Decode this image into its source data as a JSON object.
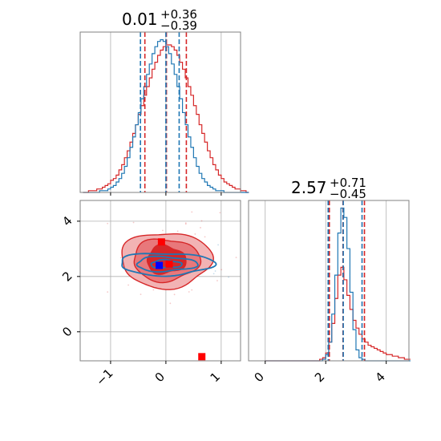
{
  "chart_data": {
    "type": "corner",
    "colors": {
      "series_a": "#d62728",
      "series_b": "#1f77b4",
      "marker_a": "#ff0000",
      "marker_b": "#0000ff",
      "grid": "#b0b0b0",
      "axes": "#808080"
    },
    "titles": {
      "param1": {
        "median": "0.01",
        "plus": "+0.36",
        "minus": "−0.39"
      },
      "param2": {
        "median": "2.57",
        "plus": "+0.71",
        "minus": "−0.45"
      }
    },
    "xlim_param1": [
      -1.55,
      1.35
    ],
    "xlim_param2": [
      -0.55,
      4.75
    ],
    "ylim_param2": [
      -1.05,
      4.75
    ],
    "ticks_param1": [
      -1,
      0,
      1
    ],
    "ticks_param1_labels": [
      "−1",
      "0",
      "1"
    ],
    "ticks_param2": [
      0,
      2,
      4
    ],
    "ticks_param2_labels": [
      "0",
      "2",
      "4"
    ],
    "grid": true,
    "hist_param1": {
      "edges_start": -1.5,
      "bin_width": 0.05,
      "series": [
        {
          "color": "#d62728",
          "values": [
            0,
            0,
            1,
            1,
            1,
            2,
            2,
            3,
            4,
            5,
            7,
            8,
            10,
            13,
            16,
            20,
            24,
            29,
            34,
            39,
            45,
            50,
            56,
            61,
            66,
            71,
            75,
            79,
            82,
            84,
            85,
            85,
            84,
            82,
            79,
            75,
            71,
            66,
            61,
            56,
            50,
            45,
            39,
            34,
            29,
            24,
            20,
            16,
            13,
            10,
            8,
            6,
            5,
            4,
            3,
            2,
            2,
            1,
            1,
            0
          ]
        },
        {
          "color": "#1f77b4",
          "values": [
            0,
            0,
            0,
            0,
            0,
            0,
            1,
            1,
            1,
            2,
            3,
            4,
            6,
            8,
            11,
            15,
            20,
            26,
            32,
            39,
            46,
            54,
            61,
            68,
            74,
            80,
            84,
            87,
            88,
            87,
            84,
            80,
            74,
            68,
            61,
            54,
            46,
            39,
            32,
            26,
            20,
            15,
            11,
            8,
            6,
            4,
            3,
            2,
            1,
            1,
            1,
            0,
            0,
            0,
            0,
            0,
            0,
            0,
            0,
            0
          ]
        }
      ],
      "quantiles": [
        {
          "color": "#d62728",
          "values": [
            -0.38,
            0.01,
            0.37
          ]
        },
        {
          "color": "#1f77b4",
          "values": [
            -0.46,
            0.0,
            0.24
          ]
        }
      ]
    },
    "hist_param2": {
      "edges_start": 0.0,
      "bin_width": 0.1,
      "series": [
        {
          "color": "#d62728",
          "values": [
            0,
            0,
            0,
            0,
            0,
            0,
            0,
            0,
            0,
            0,
            0,
            0,
            0,
            0,
            0,
            0,
            0,
            0,
            1,
            2,
            5,
            12,
            24,
            40,
            55,
            60,
            52,
            42,
            33,
            26,
            21,
            17,
            14,
            12,
            10,
            9,
            8,
            7,
            6,
            5,
            4,
            4,
            3,
            3,
            2,
            2,
            1,
            1
          ]
        },
        {
          "color": "#1f77b4",
          "values": [
            0,
            0,
            0,
            0,
            0,
            0,
            0,
            0,
            0,
            0,
            0,
            0,
            0,
            0,
            0,
            0,
            0,
            0,
            0,
            1,
            4,
            12,
            30,
            55,
            82,
            98,
            92,
            72,
            44,
            20,
            7,
            2,
            1,
            0,
            0,
            0,
            0,
            0,
            0,
            0,
            0,
            0,
            0,
            0,
            0,
            0,
            0,
            0
          ]
        }
      ],
      "quantiles": [
        {
          "color": "#d62728",
          "values": [
            2.12,
            2.57,
            3.28
          ]
        },
        {
          "color": "#1f77b4",
          "values": [
            2.08,
            2.58,
            3.2
          ]
        }
      ]
    },
    "scatter": {
      "series_a": {
        "center": [
          0.0,
          2.6
        ],
        "spread": [
          0.4,
          0.55
        ],
        "count": 90,
        "color": "#d62728"
      },
      "series_b": {
        "center": [
          0.0,
          2.5
        ],
        "spread": [
          0.35,
          0.25
        ],
        "count": 40,
        "color": "#1f77b4"
      }
    },
    "contours": {
      "series_a": {
        "color": "#d62728",
        "fills": [
          "#f2b3b4",
          "#e8787b",
          "#d62728"
        ],
        "levels": [
          {
            "cx": 0.0,
            "cy": 2.6,
            "rx": 0.82,
            "ry": 1.0,
            "amp": 0.06,
            "phase": 0.3
          },
          {
            "cx": 0.0,
            "cy": 2.6,
            "rx": 0.6,
            "ry": 0.76,
            "amp": 0.07,
            "phase": 1.1
          },
          {
            "cx": 0.0,
            "cy": 2.6,
            "rx": 0.35,
            "ry": 0.5,
            "amp": 0.1,
            "phase": 2.0
          }
        ]
      },
      "series_b": {
        "color": "#1f77b4",
        "levels": [
          {
            "cx": 0.0,
            "cy": 2.45,
            "rx": 0.85,
            "ry": 0.4,
            "amp": 0.08,
            "phase": 0.7
          },
          {
            "cx": 0.0,
            "cy": 2.45,
            "rx": 0.55,
            "ry": 0.26,
            "amp": 0.1,
            "phase": 1.6
          },
          {
            "cx": 0.0,
            "cy": 2.45,
            "rx": 0.28,
            "ry": 0.14,
            "amp": 0.12,
            "phase": 2.5
          }
        ]
      }
    },
    "markers": [
      {
        "x": -0.08,
        "y": 3.25,
        "color": "#ff0000"
      },
      {
        "x": 0.06,
        "y": 2.45,
        "color": "#ff0000"
      },
      {
        "x": 0.65,
        "y": -0.9,
        "color": "#ff0000"
      },
      {
        "x": -0.12,
        "y": 2.4,
        "color": "#0000ff"
      }
    ]
  }
}
